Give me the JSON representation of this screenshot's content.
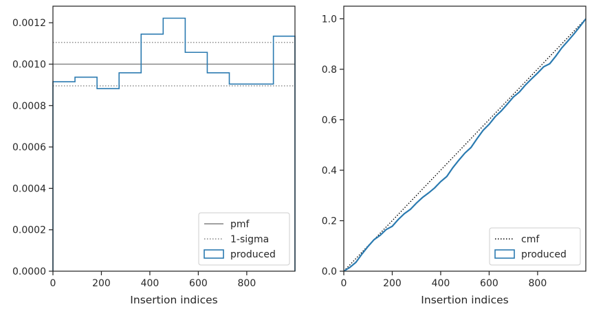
{
  "chart_data": [
    {
      "type": "histogram-step",
      "xlabel": "Insertion indices",
      "ylabel": "",
      "xlim": [
        0,
        999
      ],
      "ylim": [
        0,
        0.00128
      ],
      "xticks": [
        0,
        200,
        400,
        600,
        800
      ],
      "xtick_labels": [
        "0",
        "200",
        "400",
        "600",
        "800"
      ],
      "yticks": [
        0,
        0.0002,
        0.0004,
        0.0006,
        0.0008,
        0.001,
        0.0012
      ],
      "ytick_labels": [
        "0.0000",
        "0.0002",
        "0.0004",
        "0.0006",
        "0.0008",
        "0.0010",
        "0.0012"
      ],
      "reference_lines": [
        {
          "name": "pmf",
          "y": 0.001,
          "style": "solid",
          "color": "#808080"
        },
        {
          "name": "1-sigma",
          "y": 0.001105,
          "style": "dotted",
          "color": "#808080"
        },
        {
          "name": "1-sigma",
          "y": 0.000895,
          "style": "dotted",
          "color": "#808080"
        }
      ],
      "series": [
        {
          "name": "produced",
          "color": "#2a7ab0",
          "bin_edges": [
            0,
            91,
            182,
            273,
            364,
            455,
            546,
            637,
            728,
            819,
            910,
            999
          ],
          "values": [
            0.000915,
            0.000937,
            0.000882,
            0.000958,
            0.001145,
            0.001222,
            0.001057,
            0.000958,
            0.000904,
            0.000904,
            0.001135
          ]
        }
      ],
      "legend": {
        "position": "lower-right",
        "entries": [
          {
            "label": "pmf",
            "style": "solid-line",
            "color": "#808080"
          },
          {
            "label": "1-sigma",
            "style": "dotted-line",
            "color": "#808080"
          },
          {
            "label": "produced",
            "style": "patch",
            "color": "#2a7ab0"
          }
        ]
      }
    },
    {
      "type": "line",
      "xlabel": "Insertion indices",
      "ylabel": "",
      "xlim": [
        0,
        999
      ],
      "ylim": [
        0,
        1.05
      ],
      "xticks": [
        0,
        200,
        400,
        600,
        800
      ],
      "xtick_labels": [
        "0",
        "200",
        "400",
        "600",
        "800"
      ],
      "yticks": [
        0,
        0.2,
        0.4,
        0.6,
        0.8,
        1.0
      ],
      "ytick_labels": [
        "0.0",
        "0.2",
        "0.4",
        "0.6",
        "0.8",
        "1.0"
      ],
      "series": [
        {
          "name": "cmf",
          "style": "dotted",
          "color": "#000000",
          "x": [
            0,
            999
          ],
          "y": [
            0,
            1.0
          ]
        },
        {
          "name": "produced",
          "style": "solid",
          "color": "#2a7ab0",
          "x": [
            0,
            25,
            50,
            75,
            100,
            125,
            150,
            175,
            200,
            225,
            250,
            275,
            300,
            325,
            350,
            375,
            400,
            425,
            450,
            475,
            500,
            525,
            550,
            575,
            600,
            625,
            650,
            675,
            700,
            725,
            750,
            775,
            800,
            825,
            850,
            875,
            900,
            925,
            950,
            975,
            999
          ],
          "y": [
            0,
            0.015,
            0.035,
            0.068,
            0.098,
            0.125,
            0.142,
            0.165,
            0.178,
            0.205,
            0.228,
            0.245,
            0.27,
            0.292,
            0.31,
            0.33,
            0.355,
            0.375,
            0.41,
            0.44,
            0.468,
            0.49,
            0.525,
            0.558,
            0.582,
            0.612,
            0.635,
            0.662,
            0.69,
            0.71,
            0.738,
            0.762,
            0.785,
            0.81,
            0.822,
            0.852,
            0.885,
            0.912,
            0.94,
            0.97,
            1.0
          ]
        }
      ],
      "legend": {
        "position": "lower-right",
        "entries": [
          {
            "label": "cmf",
            "style": "dotted-line",
            "color": "#000000"
          },
          {
            "label": "produced",
            "style": "patch",
            "color": "#2a7ab0"
          }
        ]
      }
    }
  ]
}
